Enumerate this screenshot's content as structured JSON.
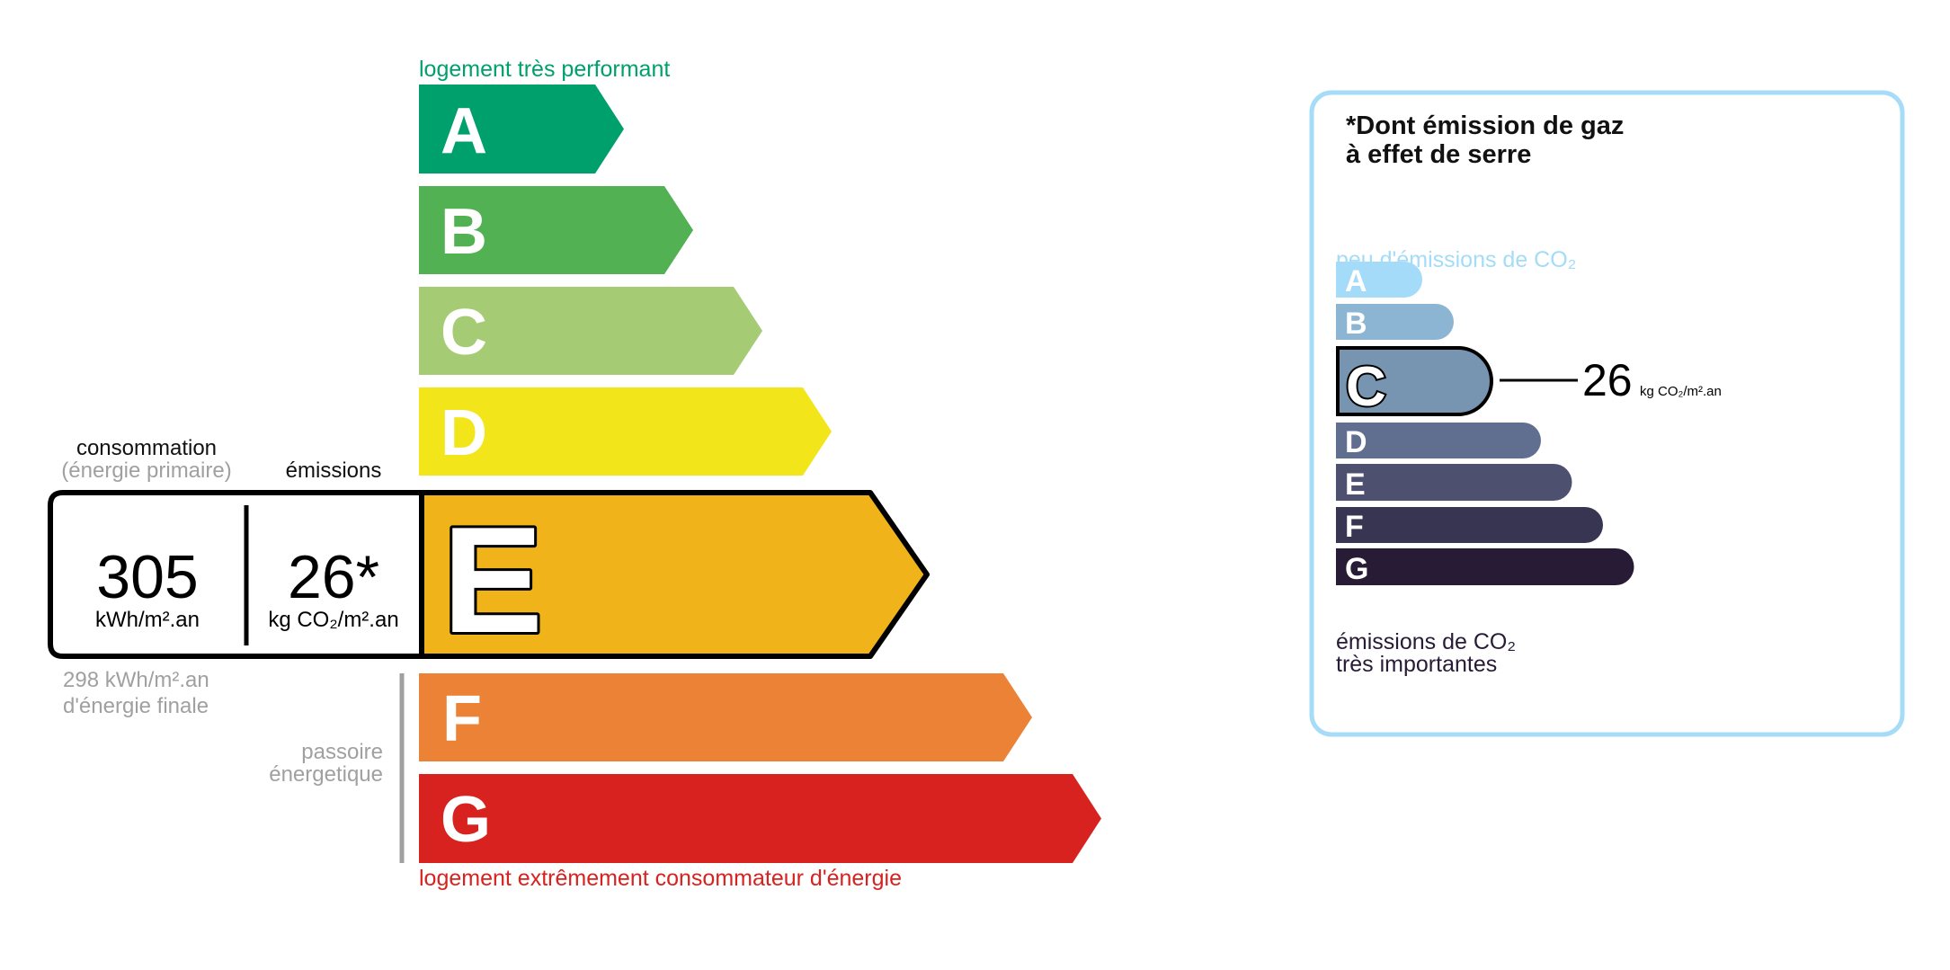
{
  "energy_label": {
    "top_caption": "logement très performant",
    "bottom_caption": "logement extrêmement consommateur d'énergie",
    "classes": [
      "A",
      "B",
      "C",
      "D",
      "E",
      "F",
      "G"
    ],
    "current_class": "E",
    "colors": {
      "A": "#00a06d",
      "B": "#52b153",
      "C": "#a5cc74",
      "D": "#f2e61b",
      "E": "#f0b41a",
      "F": "#ec8236",
      "G": "#d7221f"
    },
    "consumption_label": "consommation",
    "consumption_sublabel": "(énergie primaire)",
    "emissions_label": "émissions",
    "consumption_value": "305",
    "consumption_unit": "kWh/m².an",
    "emissions_value": "26*",
    "emissions_unit": "kg CO₂/m².an",
    "final_energy_line1": "298 kWh/m².an",
    "final_energy_line2": "d'énergie finale",
    "passoire_line1": "passoire",
    "passoire_line2": "énergetique"
  },
  "ghg_panel": {
    "title_line1": "*Dont émission de gaz",
    "title_line2": "à effet de serre",
    "top_caption": "peu d'émissions de CO₂",
    "bottom_caption_line1": "émissions de CO₂",
    "bottom_caption_line2": "très importantes",
    "classes": [
      "A",
      "B",
      "C",
      "D",
      "E",
      "F",
      "G"
    ],
    "current_class": "C",
    "value": "26",
    "unit": "kg CO₂/m².an",
    "colors": {
      "A": "#a4dbf8",
      "B": "#8cb4d3",
      "C": "#7794b1",
      "D": "#606f8f",
      "E": "#4e5070",
      "F": "#383552",
      "G": "#281b35"
    },
    "border_color": "#a6dcf7"
  }
}
